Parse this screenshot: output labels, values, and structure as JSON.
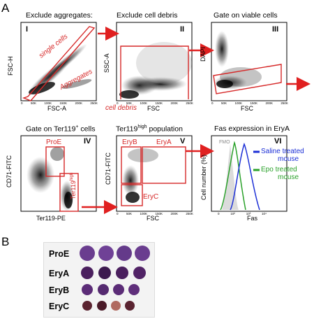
{
  "panel_a": {
    "letter": "A",
    "plots": [
      {
        "roman": "I",
        "title": "Exclude aggregates:",
        "xlabel": "FSC-A",
        "ylabel": "FSC-H",
        "annotations": [
          "single cells",
          "Aggregates"
        ]
      },
      {
        "roman": "II",
        "title": "Exclude cell debris",
        "xlabel": "FSC",
        "ylabel": "SSC-A",
        "annotations": [
          "cell debris"
        ]
      },
      {
        "roman": "III",
        "title": "Gate on viable cells",
        "xlabel": "FSC",
        "ylabel": "DAPI"
      },
      {
        "roman": "IV",
        "title_main": "Gate on Ter119",
        "title_sup": "+",
        "title_tail": " cells",
        "xlabel": "Ter119-PE",
        "ylabel": "CD71-FITC",
        "annotations": [
          "ProE",
          "Ter119",
          "high"
        ]
      },
      {
        "roman": "V",
        "title_main": "Ter119",
        "title_sup": "high",
        "title_tail": " population",
        "xlabel": "FSC",
        "ylabel": "CD71-FITC",
        "annotations": [
          "EryB",
          "EryA",
          "EryC"
        ]
      },
      {
        "roman": "VI",
        "title": "Fas expression in EryA",
        "xlabel": "Fas",
        "ylabel": "Cell number (%)",
        "fmo_label": "FMO",
        "legend": [
          {
            "label_line1": "Saline treated",
            "label_line2": "mouse",
            "color": "#1c2fd6"
          },
          {
            "label_line1": "Epo treated",
            "label_line2": "mouse",
            "color": "#2aa12a"
          }
        ]
      }
    ],
    "ticks_x": [
      "0",
      "50K",
      "100K",
      "150K",
      "200K",
      "250K"
    ],
    "ticks_y": [
      "0",
      "50K",
      "100K",
      "150K",
      "200K",
      "250K"
    ],
    "ticks_log": [
      "0",
      "10²",
      "10³",
      "10⁴",
      "10⁵"
    ]
  },
  "panel_b": {
    "letter": "B",
    "rows": [
      {
        "label": "ProE",
        "cell_color": "#6a3d8f"
      },
      {
        "label": "EryA",
        "cell_color": "#4a1f5e"
      },
      {
        "label": "EryB",
        "cell_color": "#5b2c77"
      },
      {
        "label": "EryC",
        "cell_color": "#5a2330"
      }
    ]
  }
}
